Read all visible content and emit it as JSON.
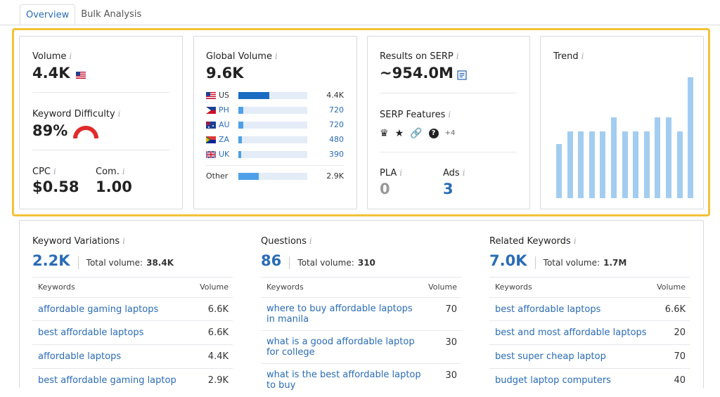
{
  "tabs": [
    "Overview",
    "Bulk Analysis"
  ],
  "volume": {
    "label": "Volume",
    "value": "4.4K"
  },
  "keyword_difficulty": {
    "label": "Keyword Difficulty",
    "value": "89%"
  },
  "cpc": {
    "label": "CPC",
    "value": "$0.58"
  },
  "com": {
    "label": "Com.",
    "value": "1.00"
  },
  "global_volume": {
    "label": "Global Volume",
    "value": "9.6K",
    "rows": [
      {
        "code": "US",
        "value": "4.4K",
        "fill": 0.45
      },
      {
        "code": "PH",
        "value": "720",
        "fill": 0.07
      },
      {
        "code": "AU",
        "value": "720",
        "fill": 0.07
      },
      {
        "code": "ZA",
        "value": "480",
        "fill": 0.05
      },
      {
        "code": "UK",
        "value": "390",
        "fill": 0.04
      }
    ],
    "other": {
      "label": "Other",
      "value": "2.9K",
      "fill": 0.3
    }
  },
  "serp": {
    "results_label": "Results on SERP",
    "results_value": "~954.0M",
    "features_label": "SERP Features",
    "features_more": "+4",
    "pla_label": "PLA",
    "pla_value": "0",
    "ads_label": "Ads",
    "ads_value": "3"
  },
  "trend": {
    "label": "Trend",
    "values": [
      0.45,
      0.55,
      0.55,
      0.55,
      0.55,
      0.67,
      0.55,
      0.55,
      0.55,
      0.67,
      0.67,
      0.55,
      1.0
    ]
  },
  "keyword_variations": {
    "title": "Keyword Variations",
    "count": "2.2K",
    "total_label": "Total volume:",
    "total_value": "38.4K",
    "col_keywords": "Keywords",
    "col_volume": "Volume",
    "rows": [
      {
        "kw": "affordable gaming laptops",
        "vol": "6.6K"
      },
      {
        "kw": "best affordable laptops",
        "vol": "6.6K"
      },
      {
        "kw": "affordable laptops",
        "vol": "4.4K"
      },
      {
        "kw": "best affordable gaming laptop",
        "vol": "2.9K"
      }
    ]
  },
  "questions": {
    "title": "Questions",
    "count": "86",
    "total_label": "Total volume:",
    "total_value": "310",
    "col_keywords": "Keywords",
    "col_volume": "Volume",
    "rows": [
      {
        "kw": "where to buy affordable laptops in manila",
        "vol": "70"
      },
      {
        "kw": "what is a good affordable laptop for college",
        "vol": "30"
      },
      {
        "kw": "what is the best affordable laptop to buy",
        "vol": "30"
      }
    ]
  },
  "related_keywords": {
    "title": "Related Keywords",
    "count": "7.0K",
    "total_label": "Total volume:",
    "total_value": "1.7M",
    "col_keywords": "Keywords",
    "col_volume": "Volume",
    "rows": [
      {
        "kw": "best affordable laptops",
        "vol": "6.6K"
      },
      {
        "kw": "best and most affordable laptops",
        "vol": "20"
      },
      {
        "kw": "best super cheap laptop",
        "vol": "70"
      },
      {
        "kw": "budget laptop computers",
        "vol": "40"
      }
    ]
  }
}
